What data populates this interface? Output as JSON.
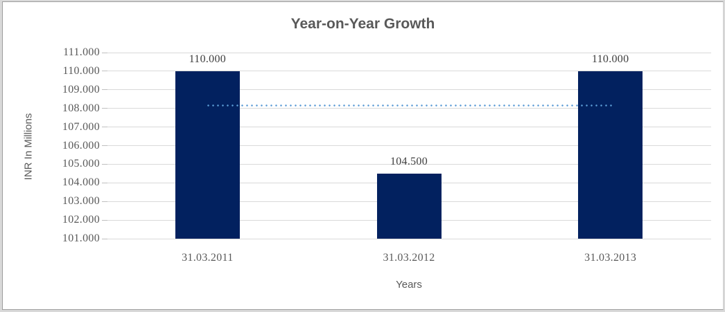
{
  "chart_data": {
    "type": "bar",
    "title": "Year-on-Year Growth",
    "xlabel": "Years",
    "ylabel": "INR In Millions",
    "categories": [
      "31.03.2011",
      "31.03.2012",
      "31.03.2013"
    ],
    "values": [
      110.0,
      104.5,
      110.0
    ],
    "data_labels": [
      "110.000",
      "104.500",
      "110.000"
    ],
    "ylim": [
      101,
      111
    ],
    "ytick_step": 1,
    "ytick_decimals": 3,
    "grid": "horizontal",
    "legend": "none",
    "trendline": {
      "value": 108.167,
      "style": "dotted",
      "span": "first-bar-center-to-last-bar-center"
    },
    "colors": {
      "bar": "#02215f",
      "trendline": "#5b9bd5",
      "gridline": "#d9d9d9",
      "tick_mark": "#bfbfbf",
      "title_text": "#595959",
      "axis_text": "#595959",
      "data_label_text": "#3d3d3d",
      "plot_background": "#ffffff",
      "outer_frame": "#d9d9d9"
    }
  }
}
